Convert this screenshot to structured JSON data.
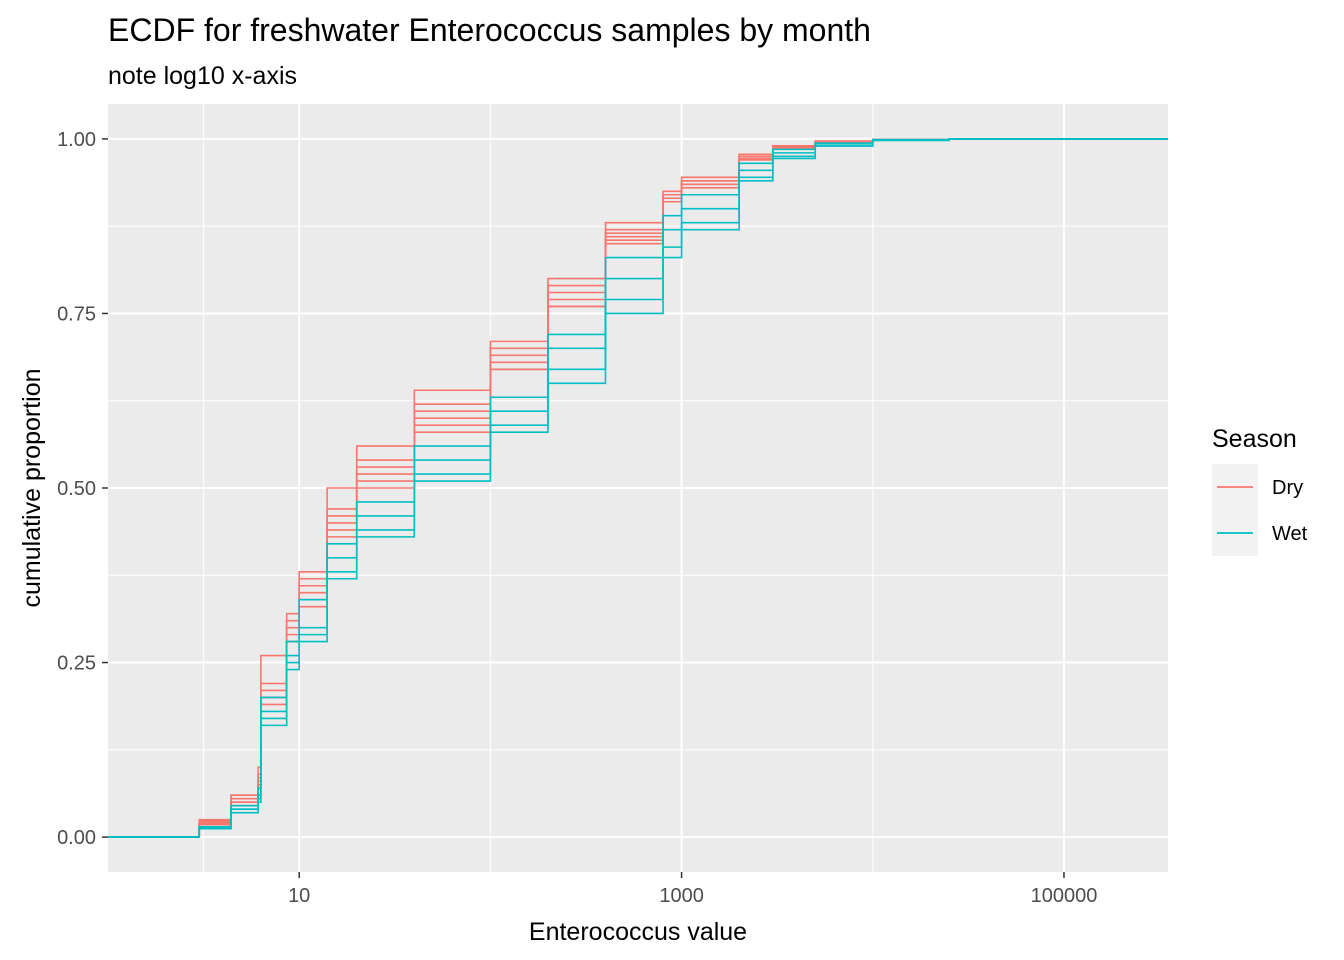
{
  "chart_data": {
    "type": "line",
    "title": "ECDF for freshwater Enterococcus samples by month",
    "subtitle": "note log10 x-axis",
    "xlabel": "Enterococcus value",
    "ylabel": "cumulative proportion",
    "x_scale": "log10",
    "xlim": [
      1,
      350000
    ],
    "ylim": [
      -0.05,
      1.05
    ],
    "x_ticks": [
      10,
      1000,
      100000
    ],
    "x_tick_labels": [
      "10",
      "1000",
      "100000"
    ],
    "y_ticks": [
      0,
      0.25,
      0.5,
      0.75,
      1
    ],
    "y_tick_labels": [
      "0.00",
      "0.25",
      "0.50",
      "0.75",
      "1.00"
    ],
    "grid": true,
    "legend": {
      "title": "Season",
      "position": "right",
      "entries": [
        {
          "label": "Dry",
          "color": "#F8766D"
        },
        {
          "label": "Wet",
          "color": "#00BFC4"
        }
      ]
    },
    "x": [
      1,
      2.99,
      3,
      4.4,
      6.1,
      6.3,
      8.6,
      10,
      14,
      20,
      40,
      100,
      200,
      400,
      800,
      1000,
      2000,
      3000,
      5000,
      10000,
      25000,
      350000
    ],
    "series": [
      {
        "season": "Dry",
        "color": "#F8766D",
        "values": [
          0,
          0,
          0.025,
          0.06,
          0.1,
          0.26,
          0.32,
          0.38,
          0.47,
          0.54,
          0.62,
          0.7,
          0.79,
          0.87,
          0.92,
          0.94,
          0.975,
          0.99,
          0.996,
          0.999,
          1,
          1
        ]
      },
      {
        "season": "Dry",
        "color": "#F8766D",
        "values": [
          0,
          0,
          0.023,
          0.06,
          0.09,
          0.22,
          0.31,
          0.36,
          0.5,
          0.56,
          0.64,
          0.71,
          0.8,
          0.88,
          0.925,
          0.945,
          0.978,
          0.99,
          0.997,
          0.999,
          1,
          1
        ]
      },
      {
        "season": "Dry",
        "color": "#F8766D",
        "values": [
          0,
          0,
          0.02,
          0.05,
          0.08,
          0.2,
          0.29,
          0.34,
          0.45,
          0.52,
          0.6,
          0.68,
          0.77,
          0.86,
          0.915,
          0.935,
          0.97,
          0.988,
          0.995,
          0.999,
          1,
          1
        ]
      },
      {
        "season": "Dry",
        "color": "#F8766D",
        "values": [
          0,
          0,
          0.018,
          0.045,
          0.07,
          0.19,
          0.28,
          0.33,
          0.43,
          0.5,
          0.58,
          0.67,
          0.76,
          0.85,
          0.91,
          0.93,
          0.97,
          0.987,
          0.995,
          0.999,
          1,
          1
        ]
      },
      {
        "season": "Dry",
        "color": "#F8766D",
        "values": [
          0,
          0,
          0.022,
          0.055,
          0.085,
          0.21,
          0.3,
          0.37,
          0.46,
          0.53,
          0.61,
          0.69,
          0.78,
          0.865,
          0.92,
          0.94,
          0.975,
          0.99,
          0.996,
          0.999,
          1,
          1
        ]
      },
      {
        "season": "Dry",
        "color": "#F8766D",
        "values": [
          0,
          0,
          0.02,
          0.05,
          0.075,
          0.2,
          0.28,
          0.35,
          0.44,
          0.51,
          0.59,
          0.67,
          0.76,
          0.855,
          0.91,
          0.935,
          0.972,
          0.988,
          0.995,
          0.999,
          1,
          1
        ]
      },
      {
        "season": "Wet",
        "color": "#00BFC4",
        "values": [
          0,
          0,
          0.015,
          0.045,
          0.07,
          0.2,
          0.28,
          0.34,
          0.42,
          0.48,
          0.56,
          0.63,
          0.72,
          0.83,
          0.89,
          0.92,
          0.965,
          0.985,
          0.994,
          0.999,
          1,
          1
        ]
      },
      {
        "season": "Wet",
        "color": "#00BFC4",
        "values": [
          0,
          0,
          0.014,
          0.04,
          0.06,
          0.18,
          0.26,
          0.3,
          0.4,
          0.46,
          0.54,
          0.61,
          0.7,
          0.8,
          0.87,
          0.9,
          0.955,
          0.98,
          0.993,
          0.998,
          1,
          1
        ]
      },
      {
        "season": "Wet",
        "color": "#00BFC4",
        "values": [
          0,
          0,
          0.013,
          0.04,
          0.055,
          0.17,
          0.25,
          0.29,
          0.38,
          0.44,
          0.52,
          0.59,
          0.67,
          0.77,
          0.845,
          0.88,
          0.945,
          0.975,
          0.99,
          0.998,
          1,
          1
        ]
      },
      {
        "season": "Wet",
        "color": "#00BFC4",
        "values": [
          0,
          0,
          0.012,
          0.035,
          0.05,
          0.16,
          0.24,
          0.28,
          0.37,
          0.43,
          0.51,
          0.58,
          0.65,
          0.75,
          0.83,
          0.87,
          0.94,
          0.972,
          0.99,
          0.998,
          1,
          1
        ]
      }
    ]
  }
}
